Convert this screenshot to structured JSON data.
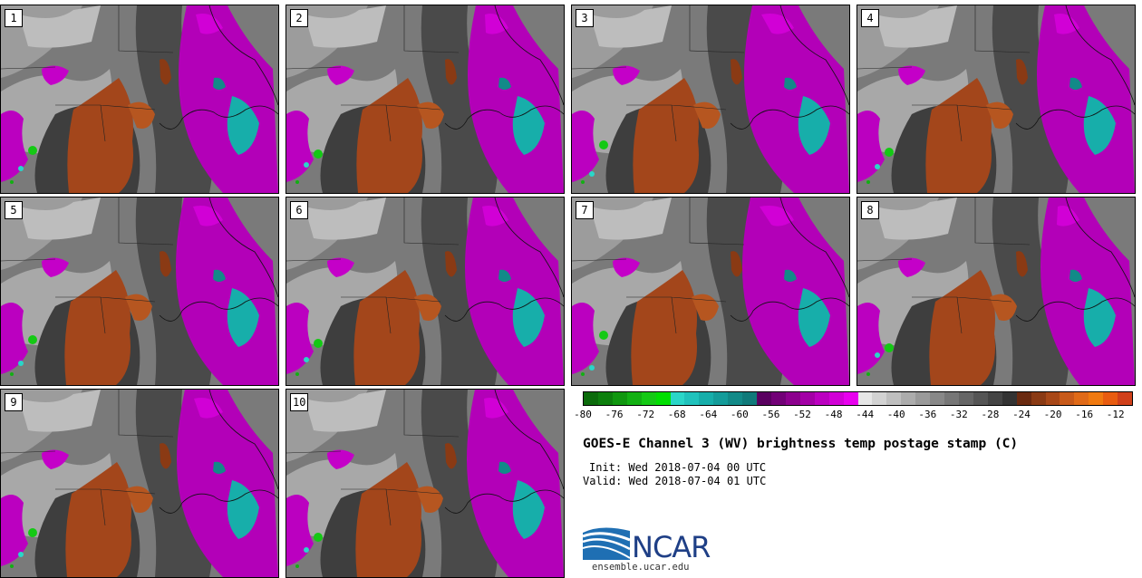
{
  "panels": [
    {
      "label": "1"
    },
    {
      "label": "2"
    },
    {
      "label": "3"
    },
    {
      "label": "4"
    },
    {
      "label": "5"
    },
    {
      "label": "6"
    },
    {
      "label": "7"
    },
    {
      "label": "8"
    },
    {
      "label": "9"
    },
    {
      "label": "10"
    }
  ],
  "colorbar": {
    "colors": [
      "#0b6b0b",
      "#0d7f0d",
      "#10970f",
      "#12b012",
      "#14c914",
      "#00df00",
      "#2ad6c8",
      "#20c2bc",
      "#17aeaa",
      "#149c9a",
      "#128a88",
      "#107a7a",
      "#5a0060",
      "#720077",
      "#8c008e",
      "#a300a6",
      "#bb00c0",
      "#d100d6",
      "#e800ee",
      "#e6e6e6",
      "#d2d2d2",
      "#bfbfbf",
      "#acacac",
      "#9a9a9a",
      "#888888",
      "#777777",
      "#666666",
      "#555555",
      "#444444",
      "#333333",
      "#6a2a10",
      "#8a3a14",
      "#a84818",
      "#c85a1a",
      "#e06a18",
      "#f07a10",
      "#e85c10",
      "#d0401a"
    ],
    "ticks": [
      "-80",
      "-76",
      "-72",
      "-68",
      "-64",
      "-60",
      "-56",
      "-52",
      "-48",
      "-44",
      "-40",
      "-36",
      "-32",
      "-28",
      "-24",
      "-20",
      "-16",
      "-12"
    ],
    "min": -80,
    "max": -10
  },
  "title": "GOES-E Channel 3 (WV) brightness temp postage stamp (C)",
  "init": "Init: Wed 2018-07-04 00 UTC",
  "valid": "Valid: Wed 2018-07-04 01 UTC",
  "logo": {
    "text": "NCAR",
    "site": "ensemble.ucar.edu"
  }
}
